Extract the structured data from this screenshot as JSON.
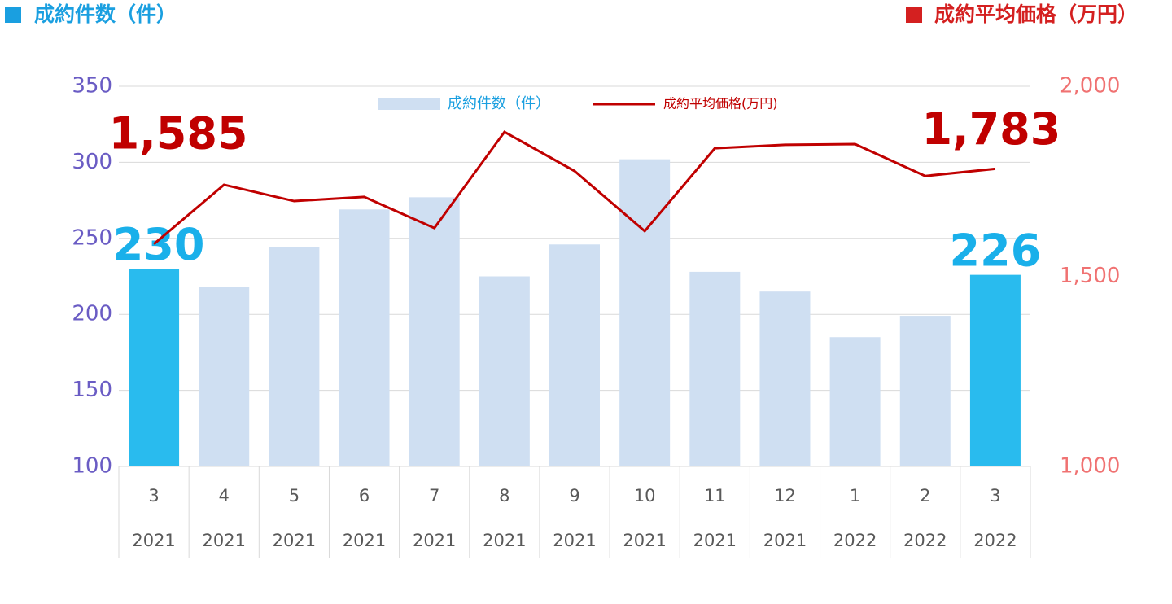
{
  "chart_data": {
    "type": "bar-line",
    "left_header": "成約件数（件）",
    "left_header_color": "#1a9fe0",
    "right_header": "成約平均価格（万円）",
    "right_header_color": "#d42020",
    "categories": [
      [
        "3",
        "2021"
      ],
      [
        "4",
        "2021"
      ],
      [
        "5",
        "2021"
      ],
      [
        "6",
        "2021"
      ],
      [
        "7",
        "2021"
      ],
      [
        "8",
        "2021"
      ],
      [
        "9",
        "2021"
      ],
      [
        "10",
        "2021"
      ],
      [
        "11",
        "2021"
      ],
      [
        "12",
        "2021"
      ],
      [
        "1",
        "2022"
      ],
      [
        "2",
        "2022"
      ],
      [
        "3",
        "2022"
      ]
    ],
    "series": [
      {
        "name": "成約件数（件）",
        "type": "bar",
        "color": "#cfdff2",
        "legend_text_color": "#1a9fe0",
        "colors": [
          "#29bbee",
          "#cfdff2",
          "#cfdff2",
          "#cfdff2",
          "#cfdff2",
          "#cfdff2",
          "#cfdff2",
          "#cfdff2",
          "#cfdff2",
          "#cfdff2",
          "#cfdff2",
          "#cfdff2",
          "#29bbee"
        ],
        "values": [
          230,
          218,
          244,
          269,
          277,
          225,
          246,
          302,
          228,
          215,
          185,
          199,
          226
        ],
        "value_labels": [
          "230",
          null,
          null,
          null,
          null,
          null,
          null,
          null,
          null,
          null,
          null,
          null,
          "226"
        ],
        "label_color": "#1ab0ea"
      },
      {
        "name": "成約平均価格(万円)",
        "type": "line",
        "axis": "y2",
        "color": "#c00000",
        "legend_text_color": "#c00000",
        "values": [
          1585,
          1741,
          1698,
          1709,
          1627,
          1880,
          1777,
          1619,
          1837,
          1846,
          1848,
          1764,
          1783
        ],
        "value_labels": [
          "1,585",
          null,
          null,
          null,
          null,
          null,
          null,
          null,
          null,
          null,
          null,
          null,
          "1,783"
        ],
        "label_color": "#c00000"
      }
    ],
    "ylim": [
      100,
      350
    ],
    "yticks": [
      100,
      150,
      200,
      250,
      300,
      350
    ],
    "y_tick_color": "#6a5cc4",
    "y2lim": [
      1000,
      2000
    ],
    "y2ticks": [
      {
        "value": 1000,
        "label": "1,000"
      },
      {
        "value": 1500,
        "label": "1,500"
      },
      {
        "value": 2000,
        "label": "2,000"
      }
    ],
    "y2_tick_color": "#f07272",
    "grid": true
  }
}
